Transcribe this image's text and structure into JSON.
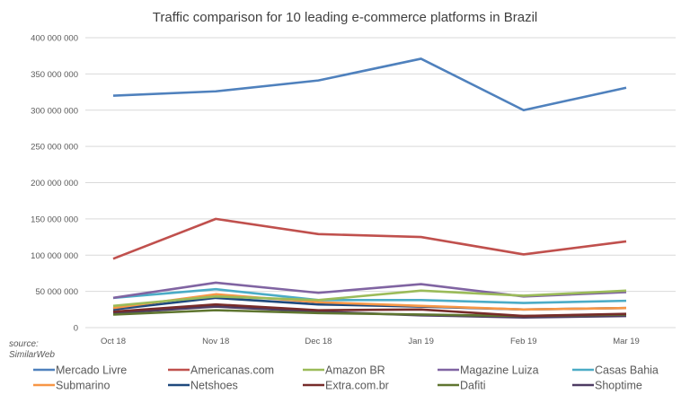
{
  "chart_data": {
    "type": "line",
    "title": "Traffic comparison for 10 leading e-commerce platforms in Brazil",
    "xlabel": "",
    "ylabel": "",
    "categories": [
      "Oct 18",
      "Nov 18",
      "Dec 18",
      "Jan 19",
      "Feb 19",
      "Mar 19"
    ],
    "ylim": [
      0,
      400000000
    ],
    "yticks": [
      "0",
      "50 000 000",
      "100 000 000",
      "150 000 000",
      "200 000 000",
      "250 000 000",
      "300 000 000",
      "350 000 000",
      "400 000 000"
    ],
    "grid": true,
    "legend": "bottom",
    "source": "source:\nSimilarWeb",
    "source_lines": [
      "source:",
      "SimilarWeb"
    ],
    "series": [
      {
        "name": "Mercado Livre",
        "color": "#4F81BD",
        "values": [
          320000000,
          326000000,
          341000000,
          371000000,
          300000000,
          331000000
        ]
      },
      {
        "name": "Americanas.com",
        "color": "#C0504D",
        "values": [
          95000000,
          150000000,
          129000000,
          125000000,
          101000000,
          119000000
        ]
      },
      {
        "name": "Amazon BR",
        "color": "#9BBB59",
        "values": [
          30000000,
          43000000,
          38000000,
          51000000,
          44000000,
          51000000
        ]
      },
      {
        "name": "Magazine Luiza",
        "color": "#8064A2",
        "values": [
          41000000,
          62000000,
          48000000,
          60000000,
          43000000,
          49000000
        ]
      },
      {
        "name": "Casas Bahia",
        "color": "#4BACC6",
        "values": [
          41000000,
          53000000,
          38000000,
          38000000,
          34000000,
          37000000
        ]
      },
      {
        "name": "Submarino",
        "color": "#F79646",
        "values": [
          27000000,
          46000000,
          35000000,
          30000000,
          25000000,
          27000000
        ]
      },
      {
        "name": "Netshoes",
        "color": "#1F497D",
        "values": [
          25000000,
          41000000,
          32000000,
          29000000,
          25000000,
          27000000
        ]
      },
      {
        "name": "Extra.com.br",
        "color": "#772C2A",
        "values": [
          22000000,
          32000000,
          24000000,
          25000000,
          16000000,
          19000000
        ]
      },
      {
        "name": "Dafiti",
        "color": "#5F7530",
        "values": [
          18000000,
          24000000,
          20000000,
          18000000,
          16000000,
          18000000
        ]
      },
      {
        "name": "Shoptime",
        "color": "#4D3B62",
        "values": [
          20000000,
          29000000,
          22000000,
          17000000,
          14000000,
          16000000
        ]
      }
    ]
  }
}
